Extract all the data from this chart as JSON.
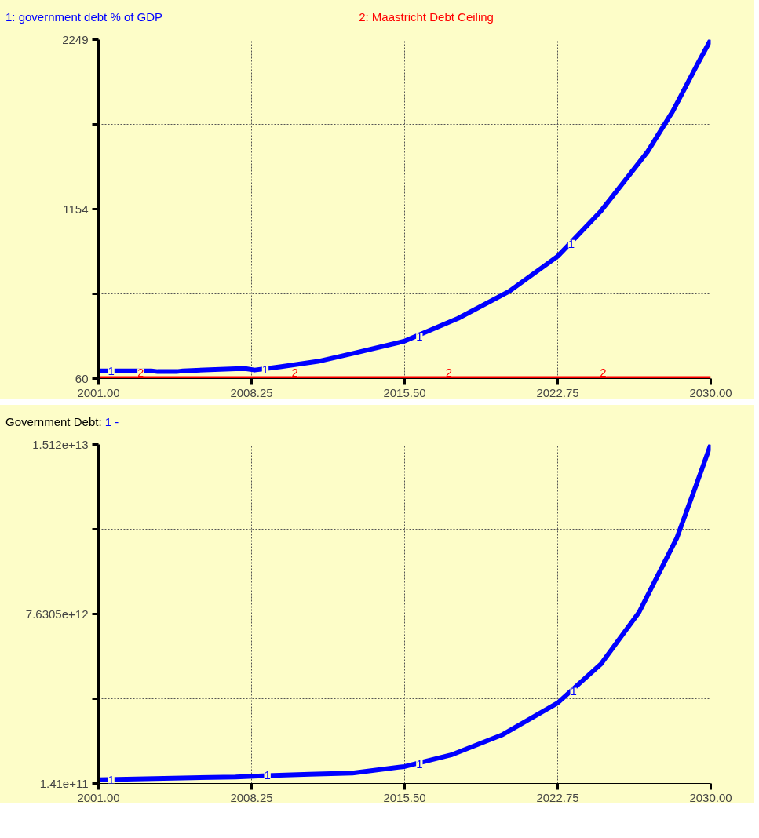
{
  "chart_data": [
    {
      "type": "line",
      "legend": "top",
      "grid": true,
      "line_style": "solid",
      "marker": "none",
      "xlim": [
        2001,
        2030
      ],
      "xticks": [
        {
          "value": 2001,
          "label": "2001.00"
        },
        {
          "value": 2008.25,
          "label": "2008.25"
        },
        {
          "value": 2015.5,
          "label": "2015.50"
        },
        {
          "value": 2022.75,
          "label": "2022.75"
        },
        {
          "value": 2030,
          "label": "2030.00"
        }
      ],
      "ylim": [
        60,
        2249
      ],
      "yticks": [
        60,
        {
          "value": 606.5,
          "label": null
        },
        1154,
        {
          "value": 1701.5,
          "label": null
        },
        2249
      ],
      "series": [
        {
          "name": "1: government debt % of GDP",
          "color": "#0000ff",
          "x": [
            2001,
            2003.5,
            2003.8,
            2004.7,
            2005,
            2007.5,
            2008,
            2008.4,
            2009.6,
            2011.4,
            2013.1,
            2015.47,
            2018.03,
            2020.45,
            2022.75,
            2024.8,
            2027.0,
            2028.2,
            2029.4,
            2030
          ],
          "values": [
            110,
            110,
            105,
            105,
            110,
            123,
            123,
            115,
            136,
            171,
            224,
            301,
            449,
            623,
            850,
            1142,
            1524,
            1786,
            2098,
            2249
          ]
        },
        {
          "name": "2: Maastricht Debt Ceiling",
          "color": "#ff0000",
          "x": [
            2001,
            2030
          ],
          "values": [
            60,
            60
          ]
        }
      ],
      "annotations": [
        {
          "text": "1",
          "x": 2001.6,
          "y": 110
        },
        {
          "text": "1",
          "x": 2008.9,
          "y": 120
        },
        {
          "text": "1",
          "x": 2016.2,
          "y": 330
        },
        {
          "text": "1",
          "x": 2023.4,
          "y": 930
        },
        {
          "text": "2",
          "x": 2003.0,
          "y": 60
        },
        {
          "text": "2",
          "x": 2010.3,
          "y": 60
        },
        {
          "text": "2",
          "x": 2017.6,
          "y": 60
        },
        {
          "text": "2",
          "x": 2024.9,
          "y": 60
        }
      ]
    },
    {
      "type": "line",
      "title": "Government Debt:",
      "legend": "top",
      "grid": true,
      "line_style": "solid",
      "marker": "none",
      "xlim": [
        2001,
        2030
      ],
      "xticks": [
        {
          "value": 2001,
          "label": "2001.00"
        },
        {
          "value": 2008.25,
          "label": "2008.25"
        },
        {
          "value": 2015.5,
          "label": "2015.50"
        },
        {
          "value": 2022.75,
          "label": "2022.75"
        },
        {
          "value": 2030,
          "label": "2030.00"
        }
      ],
      "ylim": [
        141000000000,
        15120000000000
      ],
      "yticks": [
        {
          "value": 141000000000,
          "label": "1.41e+11"
        },
        {
          "value": 3885750000000,
          "label": null
        },
        {
          "value": 7630500000000,
          "label": "7.6305e+12"
        },
        {
          "value": 11375250000000,
          "label": null
        },
        {
          "value": 15120000000000,
          "label": "1.512e+13"
        }
      ],
      "series": [
        {
          "name": "1 -",
          "color": "#0000ff",
          "x": [
            2001,
            2007.5,
            2009,
            2011,
            2013.03,
            2015.5,
            2017.7,
            2020.1,
            2022.75,
            2024.8,
            2026.6,
            2028.4,
            2029.3,
            2030
          ],
          "values": [
            310000000000,
            430000000000,
            490000000000,
            550000000000,
            600000000000,
            890000000000,
            1400000000000,
            2280000000000,
            3700000000000,
            5420000000000,
            7700000000000,
            11000000000000,
            13300000000000,
            15120000000000
          ]
        }
      ],
      "annotations": [
        {
          "text": "1",
          "x": 2001.6,
          "y": 310000000000
        },
        {
          "text": "1",
          "x": 2009.0,
          "y": 490000000000
        },
        {
          "text": "1",
          "x": 2016.2,
          "y": 1000000000000
        },
        {
          "text": "1",
          "x": 2023.5,
          "y": 4200000000000
        }
      ]
    }
  ]
}
